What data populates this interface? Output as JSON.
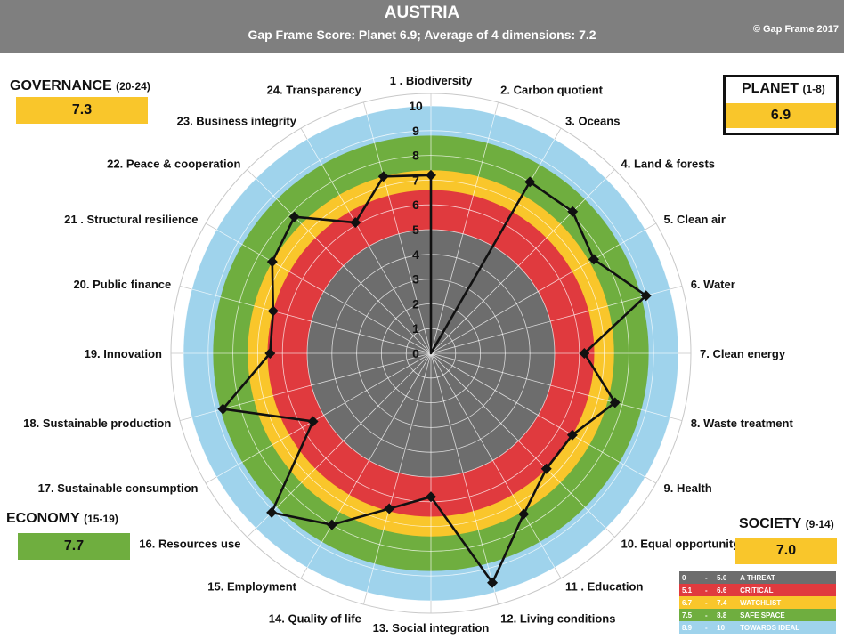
{
  "header": {
    "title": "AUSTRIA",
    "subtitle": "Gap Frame Score: Planet 6.9;    Average of 4 dimensions: 7.2",
    "copyright": "© Gap Frame 2017"
  },
  "dimensions": {
    "governance": {
      "name": "GOVERNANCE",
      "range": "(20-24)",
      "score": "7.3",
      "color": "#f9c62b"
    },
    "planet": {
      "name": "PLANET",
      "range": "(1-8)",
      "score": "6.9",
      "color": "#f9c62b"
    },
    "economy": {
      "name": "ECONOMY",
      "range": "(15-19)",
      "score": "7.7",
      "color": "#6fae3f"
    },
    "society": {
      "name": "SOCIETY",
      "range": "(9-14)",
      "score": "7.0",
      "color": "#f9c62b"
    }
  },
  "legend": [
    {
      "from": "0",
      "dash": "-",
      "to": "5.0",
      "label": "A THREAT",
      "color": "#6d6d6d"
    },
    {
      "from": "5.1",
      "dash": "-",
      "to": "6.6",
      "label": "CRITICAL",
      "color": "#e03a3e"
    },
    {
      "from": "6.7",
      "dash": "-",
      "to": "7.4",
      "label": "WATCHLIST",
      "color": "#f9c62b"
    },
    {
      "from": "7.5",
      "dash": "-",
      "to": "8.8",
      "label": "SAFE SPACE",
      "color": "#6fae3f"
    },
    {
      "from": "8.9",
      "dash": "-",
      "to": "10",
      "label": "TOWARDS IDEAL",
      "color": "#9fd3ec"
    }
  ],
  "chart_data": {
    "type": "radar",
    "title": "AUSTRIA",
    "rmin": 0,
    "rmax": 10,
    "radial_ticks": [
      "0",
      "1",
      "2",
      "3",
      "4",
      "5",
      "6",
      "7",
      "8",
      "9",
      "10"
    ],
    "bands": [
      {
        "from": 0,
        "to": 5.0,
        "color": "#6d6d6d"
      },
      {
        "from": 5.0,
        "to": 6.6,
        "color": "#e03a3e"
      },
      {
        "from": 6.6,
        "to": 7.4,
        "color": "#f9c62b"
      },
      {
        "from": 7.4,
        "to": 8.8,
        "color": "#6fae3f"
      },
      {
        "from": 8.8,
        "to": 10,
        "color": "#9fd3ec"
      }
    ],
    "categories": [
      "1 . Biodiversity",
      "2. Carbon quotient",
      "3. Oceans",
      "4. Land & forests",
      "5. Clean air",
      "6. Water",
      "7. Clean energy",
      "8. Waste treatment",
      "9. Health",
      "10. Equal opportunity",
      "11 . Education",
      "12. Living conditions",
      "13. Social integration",
      "14. Quality of life",
      "15. Employment",
      "16. Resources use",
      "17. Sustainable consumption",
      "18. Sustainable production",
      "19. Innovation",
      "20. Public finance",
      "21 . Structural resilience",
      "22. Peace & cooperation",
      "23. Business integrity",
      "24. Transparency"
    ],
    "values": [
      7.2,
      0,
      8.0,
      8.1,
      7.6,
      9.0,
      6.2,
      7.7,
      6.6,
      6.6,
      7.5,
      9.6,
      5.8,
      6.5,
      8.0,
      9.1,
      5.5,
      8.7,
      6.5,
      6.6,
      7.4,
      7.8,
      6.1,
      7.4
    ]
  }
}
